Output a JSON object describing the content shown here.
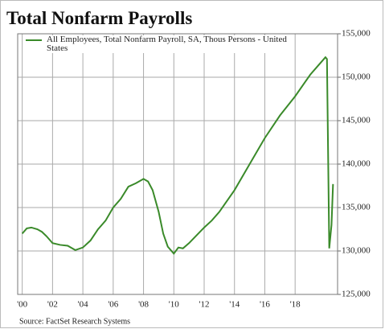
{
  "chart_data": {
    "type": "line",
    "title": "Total Nonfarm Payrolls",
    "source": "Source: FactSet Research Systems",
    "x": [
      2000.0,
      2000.3,
      2000.6,
      2001.0,
      2001.3,
      2001.6,
      2002.0,
      2002.5,
      2003.0,
      2003.5,
      2004.0,
      2004.5,
      2005.0,
      2005.5,
      2006.0,
      2006.5,
      2007.0,
      2007.5,
      2008.0,
      2008.3,
      2008.6,
      2009.0,
      2009.3,
      2009.6,
      2010.0,
      2010.3,
      2010.6,
      2011.0,
      2011.5,
      2012.0,
      2012.5,
      2013.0,
      2014.0,
      2015.0,
      2016.0,
      2017.0,
      2018.0,
      2019.0,
      2019.5,
      2020.0,
      2020.1,
      2020.25,
      2020.4,
      2020.5
    ],
    "series": [
      {
        "name": "All Employees, Total Nonfarm Payroll, SA, Thous Persons - United States",
        "color": "#3a8a2a",
        "values": [
          132000,
          132600,
          132700,
          132500,
          132200,
          131700,
          130900,
          130700,
          130600,
          130100,
          130400,
          131200,
          132500,
          133500,
          135000,
          136000,
          137400,
          137800,
          138300,
          138000,
          137000,
          134500,
          132000,
          130500,
          129700,
          130400,
          130300,
          130900,
          131800,
          132700,
          133500,
          134500,
          137000,
          140000,
          143000,
          145600,
          147800,
          150300,
          151300,
          152300,
          152100,
          130300,
          133000,
          137700
        ]
      }
    ],
    "xlim": [
      1999.7,
      2020.8
    ],
    "xticks": [
      {
        "value": 2000,
        "label": "'00"
      },
      {
        "value": 2002,
        "label": "'02"
      },
      {
        "value": 2004,
        "label": "'04"
      },
      {
        "value": 2006,
        "label": "'06"
      },
      {
        "value": 2008,
        "label": "'08"
      },
      {
        "value": 2010,
        "label": "'10"
      },
      {
        "value": 2012,
        "label": "'12"
      },
      {
        "value": 2014,
        "label": "'14"
      },
      {
        "value": 2016,
        "label": "'16"
      },
      {
        "value": 2018,
        "label": "'18"
      }
    ],
    "ylim": [
      125000,
      155000
    ],
    "yticks": [
      {
        "value": 125000,
        "label": "125,000"
      },
      {
        "value": 130000,
        "label": "130,000"
      },
      {
        "value": 135000,
        "label": "135,000"
      },
      {
        "value": 140000,
        "label": "140,000"
      },
      {
        "value": 145000,
        "label": "145,000"
      },
      {
        "value": 150000,
        "label": "150,000"
      },
      {
        "value": 155000,
        "label": "155,000"
      }
    ],
    "grid": true
  }
}
